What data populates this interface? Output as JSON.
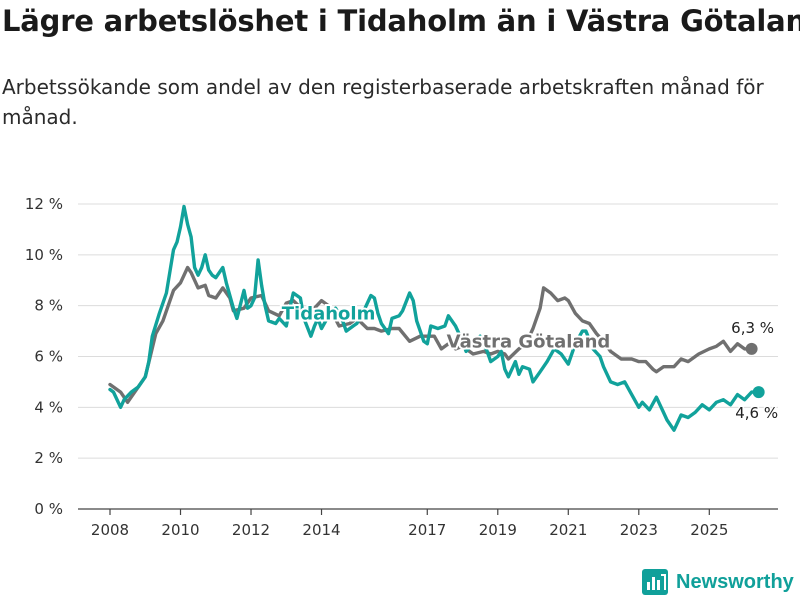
{
  "header": {
    "title": "Lägre arbetslöshet i Tidaholm än i Västra Götaland",
    "subtitle": "Arbetssökande som andel av den registerbaserade arbetskraften månad för månad."
  },
  "brand": {
    "name": "Newsworthy",
    "icon": "bar-chart-logo-icon",
    "color": "#10a09a"
  },
  "chart_data": {
    "type": "line",
    "title": "Lägre arbetslöshet i Tidaholm än i Västra Götaland",
    "xlabel": "",
    "ylabel": "",
    "xlim": [
      2008,
      2026.5
    ],
    "ylim": [
      0,
      12
    ],
    "grid": true,
    "y_ticks": [
      0,
      2,
      4,
      6,
      8,
      10,
      12
    ],
    "y_tick_labels": [
      "0 %",
      "2 %",
      "4 %",
      "6 %",
      "8 %",
      "10 %",
      "12 %"
    ],
    "x_ticks": [
      2008,
      2010,
      2012,
      2014,
      2017,
      2019,
      2021,
      2023,
      2025
    ],
    "x_tick_labels": [
      "2008",
      "2010",
      "2012",
      "2014",
      "2017",
      "2019",
      "2021",
      "2023",
      "2025"
    ],
    "series": [
      {
        "name": "Västra Götaland",
        "label": "Västra Götaland",
        "color": "#707070",
        "end_label": "6,3 %",
        "points": [
          [
            2008.0,
            4.9
          ],
          [
            2008.3,
            4.6
          ],
          [
            2008.5,
            4.2
          ],
          [
            2008.8,
            4.8
          ],
          [
            2009.0,
            5.2
          ],
          [
            2009.3,
            6.9
          ],
          [
            2009.5,
            7.4
          ],
          [
            2009.8,
            8.6
          ],
          [
            2010.0,
            8.9
          ],
          [
            2010.2,
            9.5
          ],
          [
            2010.3,
            9.3
          ],
          [
            2010.5,
            8.7
          ],
          [
            2010.7,
            8.8
          ],
          [
            2010.8,
            8.4
          ],
          [
            2011.0,
            8.3
          ],
          [
            2011.2,
            8.7
          ],
          [
            2011.4,
            8.3
          ],
          [
            2011.5,
            7.8
          ],
          [
            2011.8,
            7.9
          ],
          [
            2012.0,
            8.3
          ],
          [
            2012.3,
            8.4
          ],
          [
            2012.5,
            7.8
          ],
          [
            2012.8,
            7.6
          ],
          [
            2013.0,
            8.1
          ],
          [
            2013.2,
            8.2
          ],
          [
            2013.5,
            7.8
          ],
          [
            2013.8,
            7.9
          ],
          [
            2014.0,
            8.2
          ],
          [
            2014.2,
            8.0
          ],
          [
            2014.5,
            7.2
          ],
          [
            2014.8,
            7.3
          ],
          [
            2015.0,
            7.5
          ],
          [
            2015.3,
            7.1
          ],
          [
            2015.5,
            7.1
          ],
          [
            2015.7,
            7.0
          ],
          [
            2016.0,
            7.1
          ],
          [
            2016.2,
            7.1
          ],
          [
            2016.5,
            6.6
          ],
          [
            2016.8,
            6.8
          ],
          [
            2017.0,
            6.8
          ],
          [
            2017.2,
            6.8
          ],
          [
            2017.4,
            6.3
          ],
          [
            2017.6,
            6.5
          ],
          [
            2017.8,
            6.3
          ],
          [
            2018.0,
            6.4
          ],
          [
            2018.3,
            6.1
          ],
          [
            2018.6,
            6.2
          ],
          [
            2018.8,
            6.1
          ],
          [
            2019.0,
            6.2
          ],
          [
            2019.2,
            6.1
          ],
          [
            2019.3,
            5.9
          ],
          [
            2019.6,
            6.3
          ],
          [
            2019.8,
            6.5
          ],
          [
            2020.0,
            7.1
          ],
          [
            2020.2,
            7.9
          ],
          [
            2020.3,
            8.7
          ],
          [
            2020.5,
            8.5
          ],
          [
            2020.7,
            8.2
          ],
          [
            2020.9,
            8.3
          ],
          [
            2021.0,
            8.2
          ],
          [
            2021.2,
            7.7
          ],
          [
            2021.4,
            7.4
          ],
          [
            2021.6,
            7.3
          ],
          [
            2021.8,
            6.9
          ],
          [
            2022.0,
            6.6
          ],
          [
            2022.2,
            6.2
          ],
          [
            2022.5,
            5.9
          ],
          [
            2022.8,
            5.9
          ],
          [
            2023.0,
            5.8
          ],
          [
            2023.2,
            5.8
          ],
          [
            2023.4,
            5.5
          ],
          [
            2023.5,
            5.4
          ],
          [
            2023.7,
            5.6
          ],
          [
            2024.0,
            5.6
          ],
          [
            2024.2,
            5.9
          ],
          [
            2024.4,
            5.8
          ],
          [
            2024.7,
            6.1
          ],
          [
            2025.0,
            6.3
          ],
          [
            2025.2,
            6.4
          ],
          [
            2025.4,
            6.6
          ],
          [
            2025.6,
            6.2
          ],
          [
            2025.8,
            6.5
          ],
          [
            2026.0,
            6.3
          ],
          [
            2026.2,
            6.3
          ]
        ]
      },
      {
        "name": "Tidaholm",
        "label": "Tidaholm",
        "color": "#11a29b",
        "end_label": "4,6 %",
        "points": [
          [
            2008.0,
            4.7
          ],
          [
            2008.1,
            4.6
          ],
          [
            2008.3,
            4.0
          ],
          [
            2008.4,
            4.3
          ],
          [
            2008.6,
            4.6
          ],
          [
            2008.8,
            4.8
          ],
          [
            2009.0,
            5.2
          ],
          [
            2009.1,
            5.8
          ],
          [
            2009.2,
            6.8
          ],
          [
            2009.4,
            7.7
          ],
          [
            2009.6,
            8.5
          ],
          [
            2009.8,
            10.2
          ],
          [
            2009.9,
            10.5
          ],
          [
            2010.0,
            11.1
          ],
          [
            2010.1,
            11.9
          ],
          [
            2010.2,
            11.2
          ],
          [
            2010.3,
            10.7
          ],
          [
            2010.4,
            9.5
          ],
          [
            2010.5,
            9.2
          ],
          [
            2010.6,
            9.5
          ],
          [
            2010.7,
            10.0
          ],
          [
            2010.8,
            9.4
          ],
          [
            2010.9,
            9.2
          ],
          [
            2011.0,
            9.1
          ],
          [
            2011.1,
            9.3
          ],
          [
            2011.2,
            9.5
          ],
          [
            2011.3,
            8.9
          ],
          [
            2011.5,
            7.9
          ],
          [
            2011.6,
            7.5
          ],
          [
            2011.8,
            8.6
          ],
          [
            2011.9,
            7.9
          ],
          [
            2012.0,
            8.0
          ],
          [
            2012.1,
            8.3
          ],
          [
            2012.2,
            9.8
          ],
          [
            2012.3,
            8.8
          ],
          [
            2012.4,
            8.0
          ],
          [
            2012.5,
            7.4
          ],
          [
            2012.7,
            7.3
          ],
          [
            2012.8,
            7.5
          ],
          [
            2013.0,
            7.2
          ],
          [
            2013.1,
            7.9
          ],
          [
            2013.2,
            8.5
          ],
          [
            2013.4,
            8.3
          ],
          [
            2013.5,
            7.5
          ],
          [
            2013.7,
            6.8
          ],
          [
            2013.8,
            7.2
          ],
          [
            2013.9,
            7.5
          ],
          [
            2014.0,
            7.1
          ],
          [
            2014.2,
            7.6
          ],
          [
            2014.4,
            7.9
          ],
          [
            2014.6,
            7.4
          ],
          [
            2014.7,
            7.0
          ],
          [
            2014.9,
            7.2
          ],
          [
            2015.0,
            7.3
          ],
          [
            2015.2,
            7.8
          ],
          [
            2015.4,
            8.4
          ],
          [
            2015.5,
            8.3
          ],
          [
            2015.6,
            7.7
          ],
          [
            2015.7,
            7.3
          ],
          [
            2015.9,
            6.9
          ],
          [
            2016.0,
            7.5
          ],
          [
            2016.2,
            7.6
          ],
          [
            2016.3,
            7.8
          ],
          [
            2016.5,
            8.5
          ],
          [
            2016.6,
            8.2
          ],
          [
            2016.7,
            7.4
          ],
          [
            2016.9,
            6.6
          ],
          [
            2017.0,
            6.5
          ],
          [
            2017.1,
            7.2
          ],
          [
            2017.3,
            7.1
          ],
          [
            2017.5,
            7.2
          ],
          [
            2017.6,
            7.6
          ],
          [
            2017.8,
            7.2
          ],
          [
            2018.0,
            6.6
          ],
          [
            2018.1,
            6.2
          ],
          [
            2018.3,
            6.5
          ],
          [
            2018.5,
            6.8
          ],
          [
            2018.7,
            6.2
          ],
          [
            2018.8,
            5.8
          ],
          [
            2019.0,
            6.0
          ],
          [
            2019.1,
            6.2
          ],
          [
            2019.2,
            5.5
          ],
          [
            2019.3,
            5.2
          ],
          [
            2019.5,
            5.8
          ],
          [
            2019.6,
            5.3
          ],
          [
            2019.7,
            5.6
          ],
          [
            2019.9,
            5.5
          ],
          [
            2020.0,
            5.0
          ],
          [
            2020.2,
            5.4
          ],
          [
            2020.4,
            5.8
          ],
          [
            2020.6,
            6.3
          ],
          [
            2020.8,
            6.1
          ],
          [
            2021.0,
            5.7
          ],
          [
            2021.2,
            6.5
          ],
          [
            2021.4,
            7.0
          ],
          [
            2021.5,
            7.0
          ],
          [
            2021.7,
            6.3
          ],
          [
            2021.9,
            6.0
          ],
          [
            2022.0,
            5.6
          ],
          [
            2022.2,
            5.0
          ],
          [
            2022.4,
            4.9
          ],
          [
            2022.6,
            5.0
          ],
          [
            2022.8,
            4.5
          ],
          [
            2023.0,
            4.0
          ],
          [
            2023.1,
            4.2
          ],
          [
            2023.3,
            3.9
          ],
          [
            2023.5,
            4.4
          ],
          [
            2023.7,
            3.8
          ],
          [
            2023.8,
            3.5
          ],
          [
            2024.0,
            3.1
          ],
          [
            2024.2,
            3.7
          ],
          [
            2024.4,
            3.6
          ],
          [
            2024.6,
            3.8
          ],
          [
            2024.8,
            4.1
          ],
          [
            2025.0,
            3.9
          ],
          [
            2025.2,
            4.2
          ],
          [
            2025.4,
            4.3
          ],
          [
            2025.6,
            4.1
          ],
          [
            2025.8,
            4.5
          ],
          [
            2026.0,
            4.3
          ],
          [
            2026.2,
            4.6
          ],
          [
            2026.4,
            4.6
          ]
        ]
      }
    ]
  }
}
